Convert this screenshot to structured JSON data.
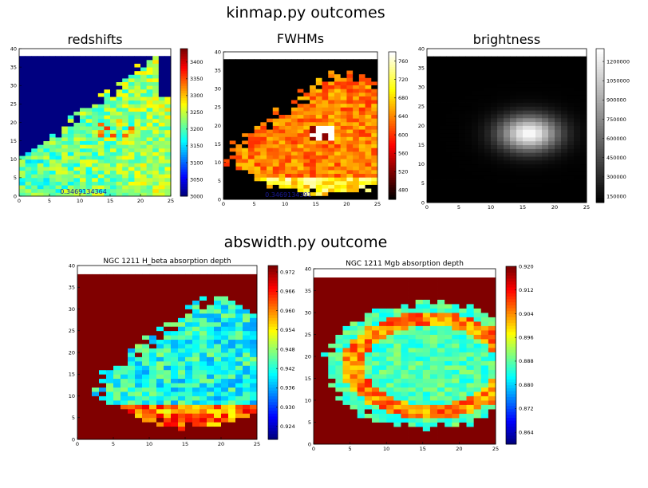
{
  "page": {
    "section1_title": "kinmap.py outcomes",
    "section2_title": "abswidth.py outcome"
  },
  "chart_data": [
    {
      "id": "redshifts",
      "type": "heatmap",
      "title": "redshifts",
      "colormap": "jet",
      "xlim": [
        0,
        25
      ],
      "ylim": [
        0,
        40
      ],
      "xticks": [
        "0",
        "5",
        "10",
        "15",
        "20",
        "25"
      ],
      "yticks": [
        "0",
        "5",
        "10",
        "15",
        "20",
        "25",
        "30",
        "35",
        "40"
      ],
      "clim": [
        3000,
        3440
      ],
      "colorbar_ticks": [
        "3000",
        "3050",
        "3100",
        "3150",
        "3200",
        "3250",
        "3300",
        "3350",
        "3400"
      ],
      "overlay_text": "0.3469134364"
    },
    {
      "id": "fwhms",
      "type": "heatmap",
      "title": "FWHMs",
      "colormap": "hot",
      "xlim": [
        0,
        25
      ],
      "ylim": [
        0,
        40
      ],
      "xticks": [
        "0",
        "5",
        "10",
        "15",
        "20",
        "25"
      ],
      "yticks": [
        "0",
        "5",
        "10",
        "15",
        "20",
        "25",
        "30",
        "35",
        "40"
      ],
      "clim": [
        460,
        780
      ],
      "colorbar_ticks": [
        "480",
        "520",
        "560",
        "600",
        "640",
        "680",
        "720",
        "760"
      ],
      "overlay_text": "0.3469134391"
    },
    {
      "id": "brightness",
      "type": "heatmap",
      "title": "brightness",
      "colormap": "gray",
      "xlim": [
        0,
        25
      ],
      "ylim": [
        0,
        40
      ],
      "xticks": [
        "0",
        "5",
        "10",
        "15",
        "20",
        "25"
      ],
      "yticks": [
        "0",
        "5",
        "10",
        "15",
        "20",
        "25",
        "30",
        "35",
        "40"
      ],
      "clim": [
        100000,
        1300000
      ],
      "colorbar_ticks": [
        "150000",
        "300000",
        "450000",
        "600000",
        "750000",
        "900000",
        "1050000",
        "1200000"
      ],
      "overlay_text": ""
    },
    {
      "id": "hbeta",
      "type": "heatmap",
      "title": "NGC 1211 H_beta absorption depth",
      "colormap": "jet",
      "xlim": [
        0,
        25
      ],
      "ylim": [
        0,
        40
      ],
      "xticks": [
        "0",
        "5",
        "10",
        "15",
        "20",
        "25"
      ],
      "yticks": [
        "0",
        "5",
        "10",
        "15",
        "20",
        "25",
        "30",
        "35",
        "40"
      ],
      "clim": [
        0.92,
        0.974
      ],
      "colorbar_ticks": [
        "0.924",
        "0.930",
        "0.936",
        "0.942",
        "0.948",
        "0.954",
        "0.960",
        "0.966",
        "0.972"
      ],
      "overlay_text": ""
    },
    {
      "id": "mgb",
      "type": "heatmap",
      "title": "NGC 1211 Mgb absorption depth",
      "colormap": "jet",
      "xlim": [
        0,
        25
      ],
      "ylim": [
        0,
        40
      ],
      "xticks": [
        "0",
        "5",
        "10",
        "15",
        "20",
        "25"
      ],
      "yticks": [
        "0",
        "5",
        "10",
        "15",
        "20",
        "25",
        "30",
        "35",
        "40"
      ],
      "clim": [
        0.86,
        0.92
      ],
      "colorbar_ticks": [
        "0.864",
        "0.872",
        "0.880",
        "0.888",
        "0.896",
        "0.904",
        "0.912",
        "0.920"
      ],
      "overlay_text": ""
    }
  ]
}
